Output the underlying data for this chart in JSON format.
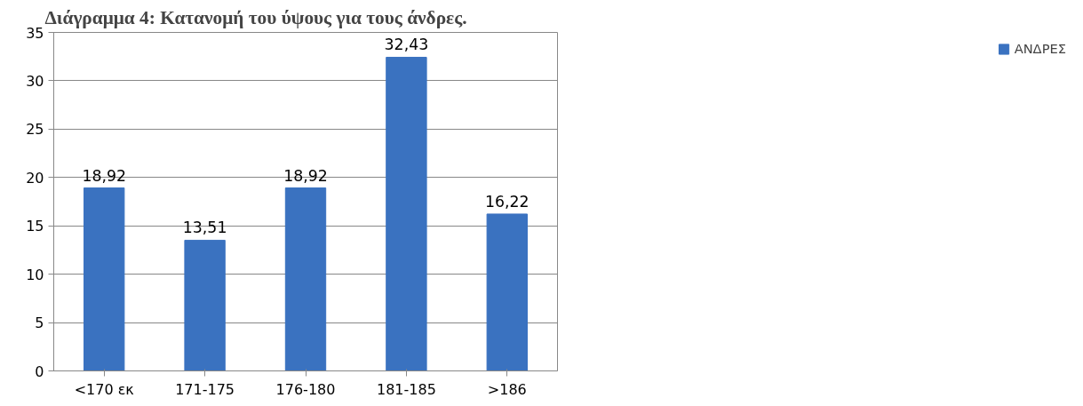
{
  "chart_data": {
    "type": "bar",
    "title": "Διάγραμμα 4: Κατανομή του ύψους για τους άνδρες.",
    "categories": [
      "<170 εκ",
      "171-175",
      "176-180",
      "181-185",
      ">186"
    ],
    "series": [
      {
        "name": "ΑΝΔΡΕΣ",
        "color": "#3a72c0",
        "values": [
          18.92,
          13.51,
          18.92,
          32.43,
          16.22
        ]
      }
    ],
    "value_labels": [
      "18,92",
      "13,51",
      "18,92",
      "32,43",
      "16,22"
    ],
    "ylim": [
      0,
      35
    ],
    "yticks": [
      0,
      5,
      10,
      15,
      20,
      25,
      30,
      35
    ],
    "grid": "y",
    "legend": "right"
  }
}
